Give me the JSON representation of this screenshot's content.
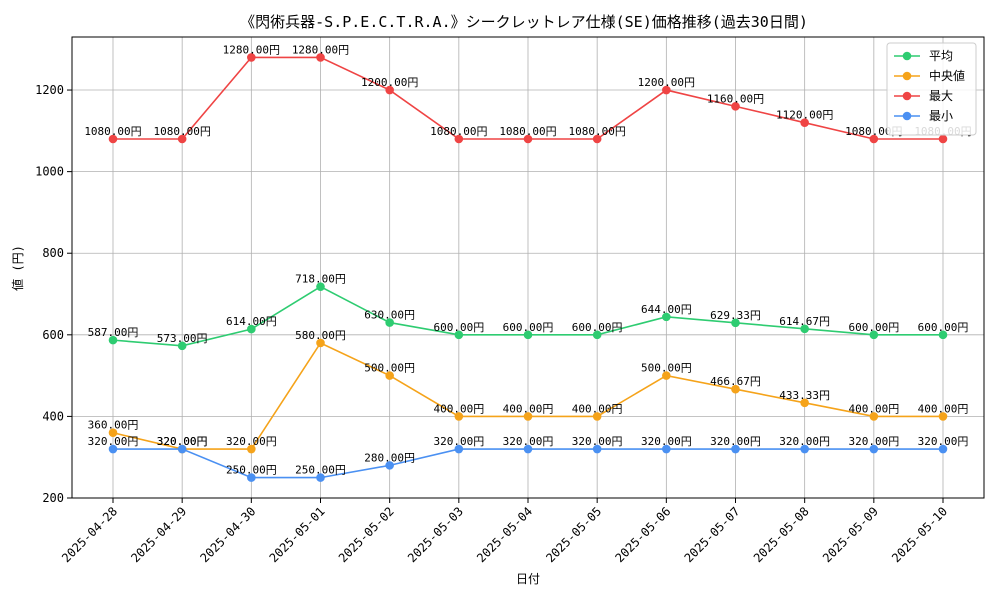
{
  "chart_data": {
    "type": "line",
    "title": "《閃術兵器-S.P.E.C.T.R.A.》シークレットレア仕様(SE)価格推移(過去30日間)",
    "xlabel": "日付",
    "ylabel": "値 (円)",
    "ylim": [
      200,
      1330
    ],
    "yticks": [
      200,
      400,
      600,
      800,
      1000,
      1200
    ],
    "grid": true,
    "legend_position": "top-right",
    "categories": [
      "2025-04-28",
      "2025-04-29",
      "2025-04-30",
      "2025-05-01",
      "2025-05-02",
      "2025-05-03",
      "2025-05-04",
      "2025-05-05",
      "2025-05-06",
      "2025-05-07",
      "2025-05-08",
      "2025-05-09",
      "2025-05-10"
    ],
    "series": [
      {
        "name": "平均",
        "color": "#2ecc71",
        "values": [
          587.0,
          573.0,
          614.0,
          718.0,
          630.0,
          600.0,
          600.0,
          600.0,
          644.0,
          629.33,
          614.67,
          600.0,
          600.0
        ],
        "labels": [
          "587.00円",
          "573.00円",
          "614.00円",
          "718.00円",
          "630.00円",
          "600.00円",
          "600.00円",
          "600.00円",
          "644.00円",
          "629.33円",
          "614.67円",
          "600.00円",
          "600.00円"
        ]
      },
      {
        "name": "中央値",
        "color": "#f5a31a",
        "values": [
          360.0,
          320.0,
          320.0,
          580.0,
          500.0,
          400.0,
          400.0,
          400.0,
          500.0,
          466.67,
          433.33,
          400.0,
          400.0
        ],
        "labels": [
          "360.00円",
          "320.00円",
          "320.00円",
          "580.00円",
          "500.00円",
          "400.00円",
          "400.00円",
          "400.00円",
          "500.00円",
          "466.67円",
          "433.33円",
          "400.00円",
          "400.00円"
        ]
      },
      {
        "name": "最大",
        "color": "#ef4444",
        "values": [
          1080.0,
          1080.0,
          1280.0,
          1280.0,
          1200.0,
          1080.0,
          1080.0,
          1080.0,
          1200.0,
          1160.0,
          1120.0,
          1080.0,
          1080.0
        ],
        "labels": [
          "1080.00円",
          "1080.00円",
          "1280.00円",
          "1280.00円",
          "1200.00円",
          "1080.00円",
          "1080.00円",
          "1080.00円",
          "1200.00円",
          "1160.00円",
          "1120.00円",
          "1080.00円",
          "1080.00円"
        ]
      },
      {
        "name": "最小",
        "color": "#4a90f2",
        "values": [
          320.0,
          320.0,
          250.0,
          250.0,
          280.0,
          320.0,
          320.0,
          320.0,
          320.0,
          320.0,
          320.0,
          320.0,
          320.0
        ],
        "labels": [
          "320.00円",
          "320.00円",
          "250.00円",
          "250.00円",
          "280.00円",
          "320.00円",
          "320.00円",
          "320.00円",
          "320.00円",
          "320.00円",
          "320.00円",
          "320.00円",
          "320.00円"
        ]
      }
    ]
  }
}
